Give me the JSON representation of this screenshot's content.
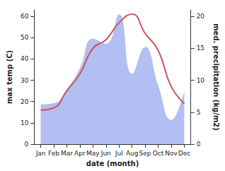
{
  "chart_data": {
    "type": "line",
    "xlabel": "date (month)",
    "ylabel": "max temp (C)",
    "y2label": "med. precipitation (kg/m2)",
    "categories": [
      "Jan",
      "Feb",
      "Mar",
      "Apr",
      "May",
      "Jun",
      "Jul",
      "Aug",
      "Sep",
      "Oct",
      "Nov",
      "Dec"
    ],
    "series": [
      {
        "type": "area",
        "axis": "y2",
        "color": "#b3bff2",
        "values": [
          6.2,
          6.4,
          8.6,
          11.9,
          16.5,
          15.7,
          20.3,
          11.0,
          15.2,
          9.2,
          3.8,
          8.3
        ]
      },
      {
        "type": "line",
        "axis": "y",
        "color": "#c9575d",
        "values": [
          16,
          17,
          25,
          33,
          45,
          49,
          57,
          61,
          52,
          44,
          27,
          19
        ]
      }
    ],
    "ylim": [
      0,
      63
    ],
    "yticks": [
      0,
      10,
      20,
      30,
      40,
      50,
      60
    ],
    "y2lim": [
      0,
      21
    ],
    "y2ticks": [
      0,
      5,
      10,
      15,
      20
    ],
    "grid": false
  }
}
